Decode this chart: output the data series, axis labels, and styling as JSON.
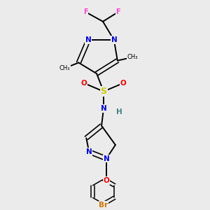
{
  "bg_color": "#ebebeb",
  "fig_size": [
    3.0,
    3.0
  ],
  "dpi": 100,
  "title_color": "#000000",
  "atom_colors": {
    "F": "#ff44cc",
    "N": "#0000ee",
    "S": "#cccc00",
    "O": "#ff0000",
    "H": "#408080",
    "Br": "#cc7700",
    "C": "#000000"
  }
}
